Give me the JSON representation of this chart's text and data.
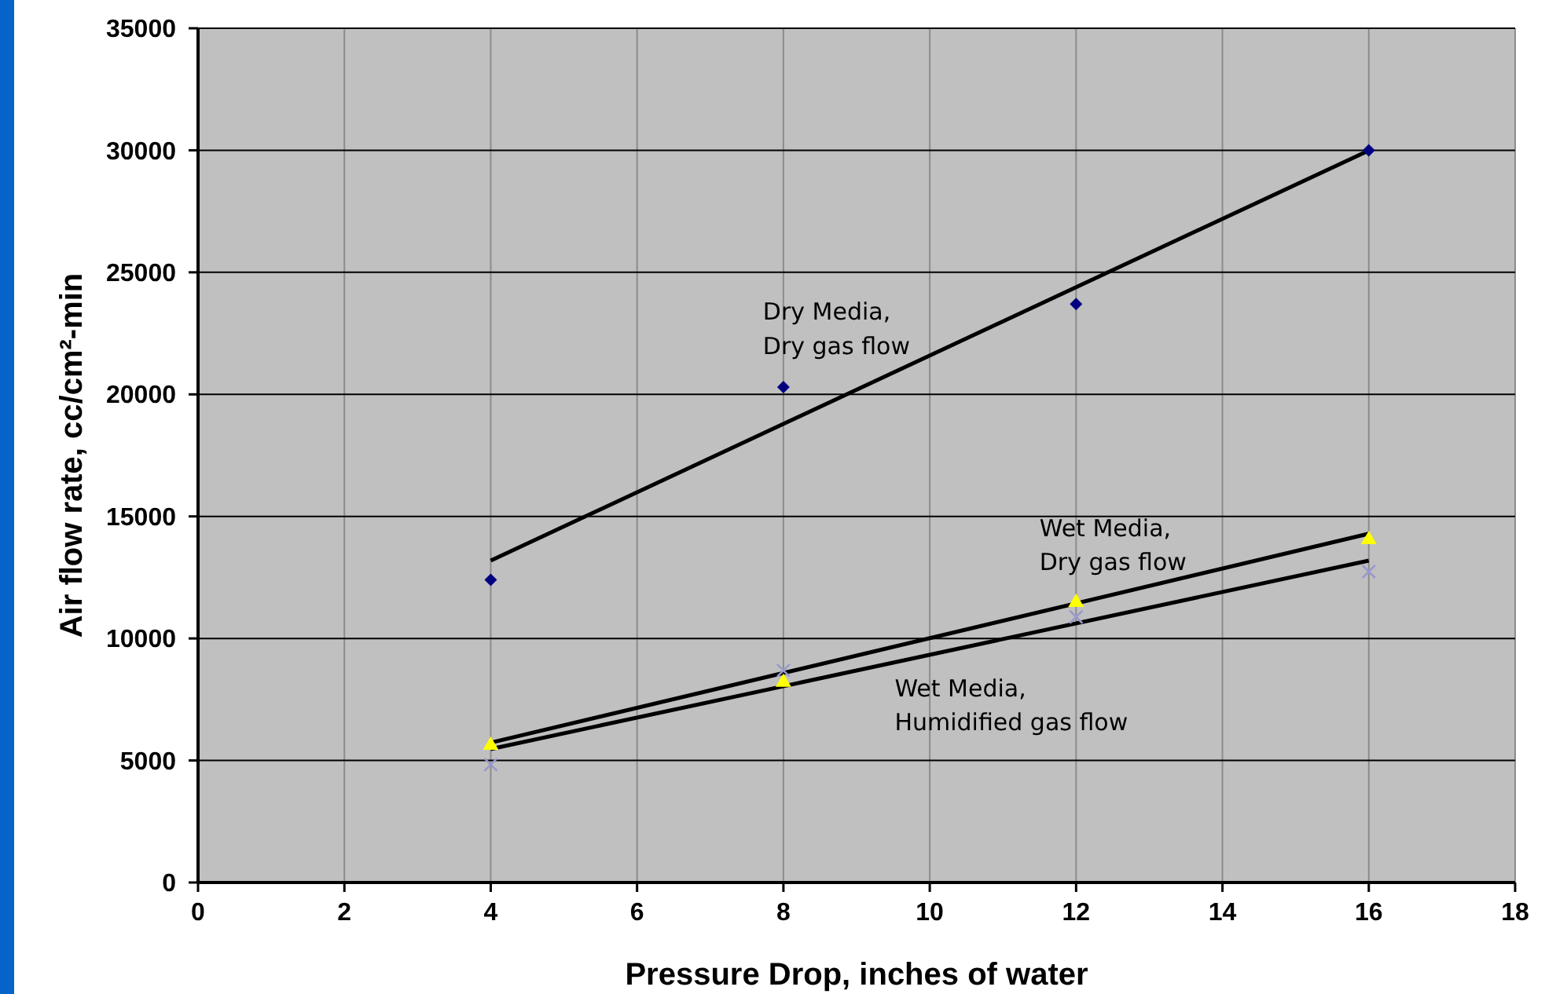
{
  "chart_data": {
    "type": "scatter",
    "xlabel": "Pressure Drop, inches of water",
    "ylabel": "Air flow rate, cc/cm²-min",
    "xlim": [
      0,
      18
    ],
    "xticks": [
      0,
      2,
      4,
      6,
      8,
      10,
      12,
      14,
      16,
      18
    ],
    "ylim": [
      0,
      35000
    ],
    "yticks": [
      0,
      5000,
      10000,
      15000,
      20000,
      25000,
      30000,
      35000
    ],
    "grid": true,
    "legend": false,
    "series": [
      {
        "color": "#000080",
        "marker": "diamond",
        "x": [
          4,
          8,
          12,
          16
        ],
        "values": [
          12400,
          20300,
          23700,
          30000
        ]
      },
      {
        "color": "#ffff00",
        "marker": "triangle",
        "x": [
          4,
          8,
          12,
          16
        ],
        "values": [
          5660,
          8240,
          11520,
          14090
        ]
      },
      {
        "color": "#9999cc",
        "marker": "cross",
        "x": [
          4,
          8,
          12,
          16
        ],
        "values": [
          4830,
          8690,
          10880,
          12740
        ]
      },
      {
        "type": "line",
        "name": "Dry Media,\nDry gas flow",
        "color": "#000000",
        "marker": "none",
        "x": [
          4,
          16
        ],
        "values": [
          13190,
          29990
        ]
      },
      {
        "type": "line",
        "name": "Wet Media,\nDry gas flow",
        "color": "#000000",
        "marker": "none",
        "x": [
          4,
          16
        ],
        "values": [
          5730,
          14290
        ]
      },
      {
        "type": "line",
        "name": "Wet Media,\nHumidified gas flow",
        "color": "#000000",
        "marker": "none",
        "x": [
          4,
          16
        ],
        "values": [
          5470,
          13190
        ]
      }
    ]
  }
}
